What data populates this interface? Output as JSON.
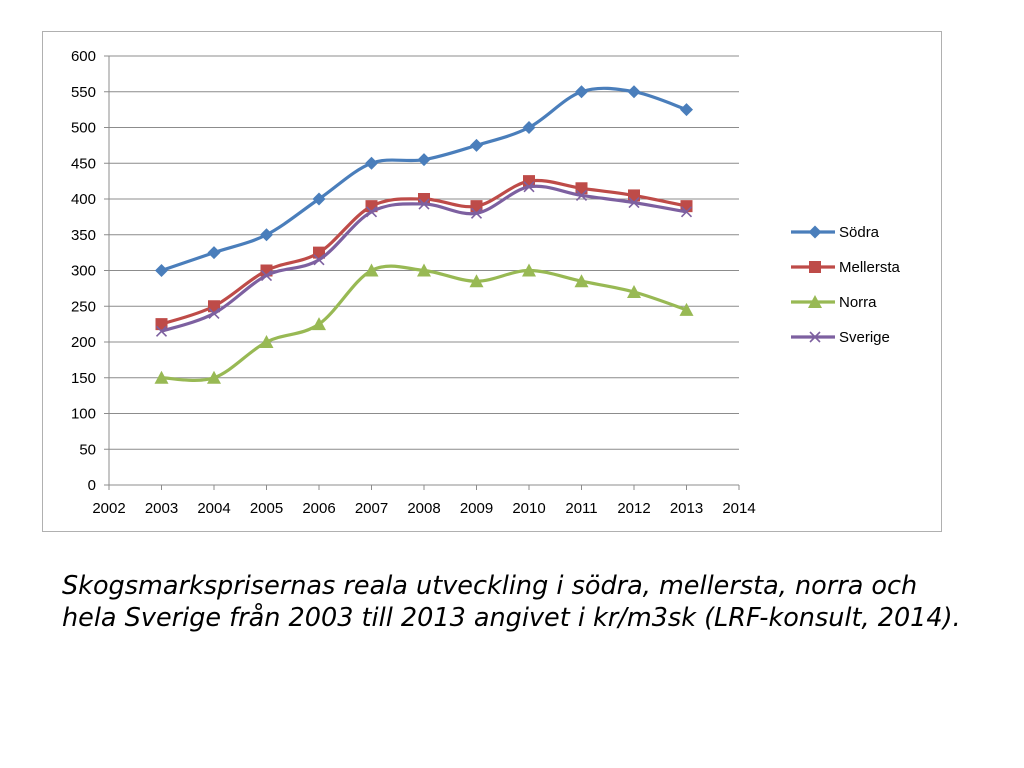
{
  "chart_data": {
    "type": "line",
    "x": [
      2003,
      2004,
      2005,
      2006,
      2007,
      2008,
      2009,
      2010,
      2011,
      2012,
      2013
    ],
    "xlim": [
      2002,
      2014
    ],
    "ylim": [
      0,
      600
    ],
    "yticks": [
      0,
      50,
      100,
      150,
      200,
      250,
      300,
      350,
      400,
      450,
      500,
      550,
      600
    ],
    "xticks": [
      2002,
      2003,
      2004,
      2005,
      2006,
      2007,
      2008,
      2009,
      2010,
      2011,
      2012,
      2013,
      2014
    ],
    "grid": "horizontal",
    "smoothed": true,
    "legend_position": "right",
    "series": [
      {
        "name": "Södra",
        "color": "#4a7ebb",
        "marker": "diamond",
        "values": [
          300,
          325,
          350,
          400,
          450,
          455,
          475,
          500,
          550,
          550,
          525
        ]
      },
      {
        "name": "Mellersta",
        "color": "#be4b48",
        "marker": "square",
        "values": [
          225,
          250,
          300,
          325,
          390,
          400,
          390,
          425,
          415,
          405,
          390
        ]
      },
      {
        "name": "Norra",
        "color": "#98b954",
        "marker": "triangle",
        "values": [
          150,
          150,
          200,
          225,
          300,
          300,
          285,
          300,
          285,
          270,
          245
        ]
      },
      {
        "name": "Sverige",
        "color": "#7d60a0",
        "marker": "x",
        "values": [
          215,
          240,
          293,
          315,
          382,
          393,
          380,
          417,
          405,
          395,
          382
        ]
      }
    ]
  },
  "caption": "Skogsmarksprisernas reala utveckling i södra, mellersta, norra och hela Sverige från 2003 till 2013 angivet i kr/m3sk (LRF-konsult, 2014)."
}
